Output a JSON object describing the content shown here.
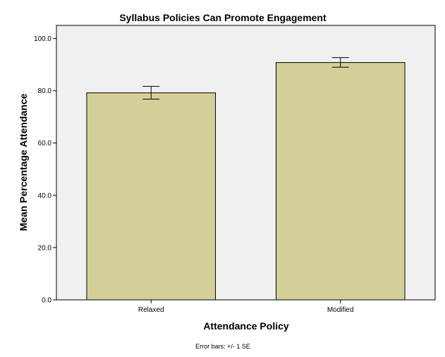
{
  "chart_data": {
    "type": "bar",
    "title": "Syllabus Policies Can Promote Engagement",
    "xlabel": "Attendance Policy",
    "ylabel": "Mean Percentage Attendance",
    "categories": [
      "Relaxed",
      "Modified"
    ],
    "values": [
      79.2,
      90.8
    ],
    "error_low": [
      76.8,
      89.0
    ],
    "error_high": [
      81.7,
      92.7
    ],
    "ylim": [
      0,
      105
    ],
    "yticks": [
      0,
      20,
      40,
      60,
      80,
      100
    ],
    "ytick_labels": [
      "0.0",
      "20.0",
      "40.0",
      "60.0",
      "80.0",
      "100.0"
    ],
    "footnote": "Error bars: +/- 1 SE",
    "grid": false,
    "colors": {
      "bar_fill": "#d3cf98",
      "plot_background": "#f0f0f0",
      "bar_stroke": "#000000"
    }
  }
}
